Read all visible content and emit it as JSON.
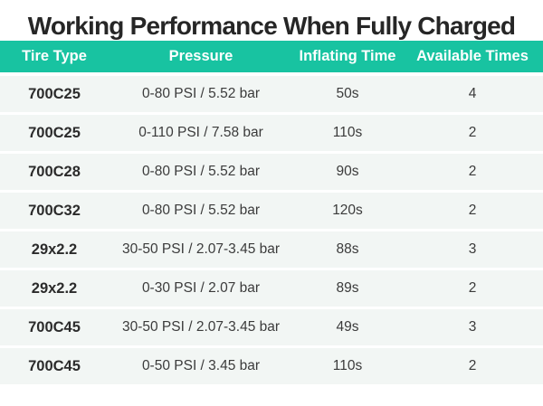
{
  "title": "Working Performance When Fully Charged",
  "colors": {
    "header_bg": "#18c3a1",
    "row_bg": "#f2f6f4",
    "title_color": "#262626",
    "header_text": "#ffffff",
    "cell_text": "#3b3b3b"
  },
  "table": {
    "columns": [
      "Tire Type",
      "Pressure",
      "Inflating Time",
      "Available Times"
    ],
    "rows": [
      {
        "tire_type": "700C25",
        "pressure": "0-80 PSI / 5.52 bar",
        "inflating_time": "50s",
        "available_times": "4"
      },
      {
        "tire_type": "700C25",
        "pressure": "0-110 PSI / 7.58 bar",
        "inflating_time": "110s",
        "available_times": "2"
      },
      {
        "tire_type": "700C28",
        "pressure": "0-80 PSI / 5.52 bar",
        "inflating_time": "90s",
        "available_times": "2"
      },
      {
        "tire_type": "700C32",
        "pressure": "0-80 PSI / 5.52 bar",
        "inflating_time": "120s",
        "available_times": "2"
      },
      {
        "tire_type": "29x2.2",
        "pressure": "30-50 PSI / 2.07-3.45 bar",
        "inflating_time": "88s",
        "available_times": "3"
      },
      {
        "tire_type": "29x2.2",
        "pressure": "0-30 PSI / 2.07 bar",
        "inflating_time": "89s",
        "available_times": "2"
      },
      {
        "tire_type": "700C45",
        "pressure": "30-50 PSI / 2.07-3.45 bar",
        "inflating_time": "49s",
        "available_times": "3"
      },
      {
        "tire_type": "700C45",
        "pressure": "0-50 PSI / 3.45 bar",
        "inflating_time": "110s",
        "available_times": "2"
      }
    ]
  },
  "chart_data": {
    "type": "table",
    "title": "Working Performance When Fully Charged",
    "columns": [
      "Tire Type",
      "Pressure",
      "Inflating Time",
      "Available Times"
    ],
    "rows": [
      [
        "700C25",
        "0-80 PSI / 5.52 bar",
        "50s",
        4
      ],
      [
        "700C25",
        "0-110 PSI / 7.58 bar",
        "110s",
        2
      ],
      [
        "700C28",
        "0-80 PSI / 5.52 bar",
        "90s",
        2
      ],
      [
        "700C32",
        "0-80 PSI / 5.52 bar",
        "120s",
        2
      ],
      [
        "29x2.2",
        "30-50 PSI / 2.07-3.45 bar",
        "88s",
        3
      ],
      [
        "29x2.2",
        "0-30 PSI / 2.07 bar",
        "89s",
        2
      ],
      [
        "700C45",
        "30-50 PSI / 2.07-3.45 bar",
        "49s",
        3
      ],
      [
        "700C45",
        "0-50 PSI / 3.45 bar",
        "110s",
        2
      ]
    ]
  }
}
